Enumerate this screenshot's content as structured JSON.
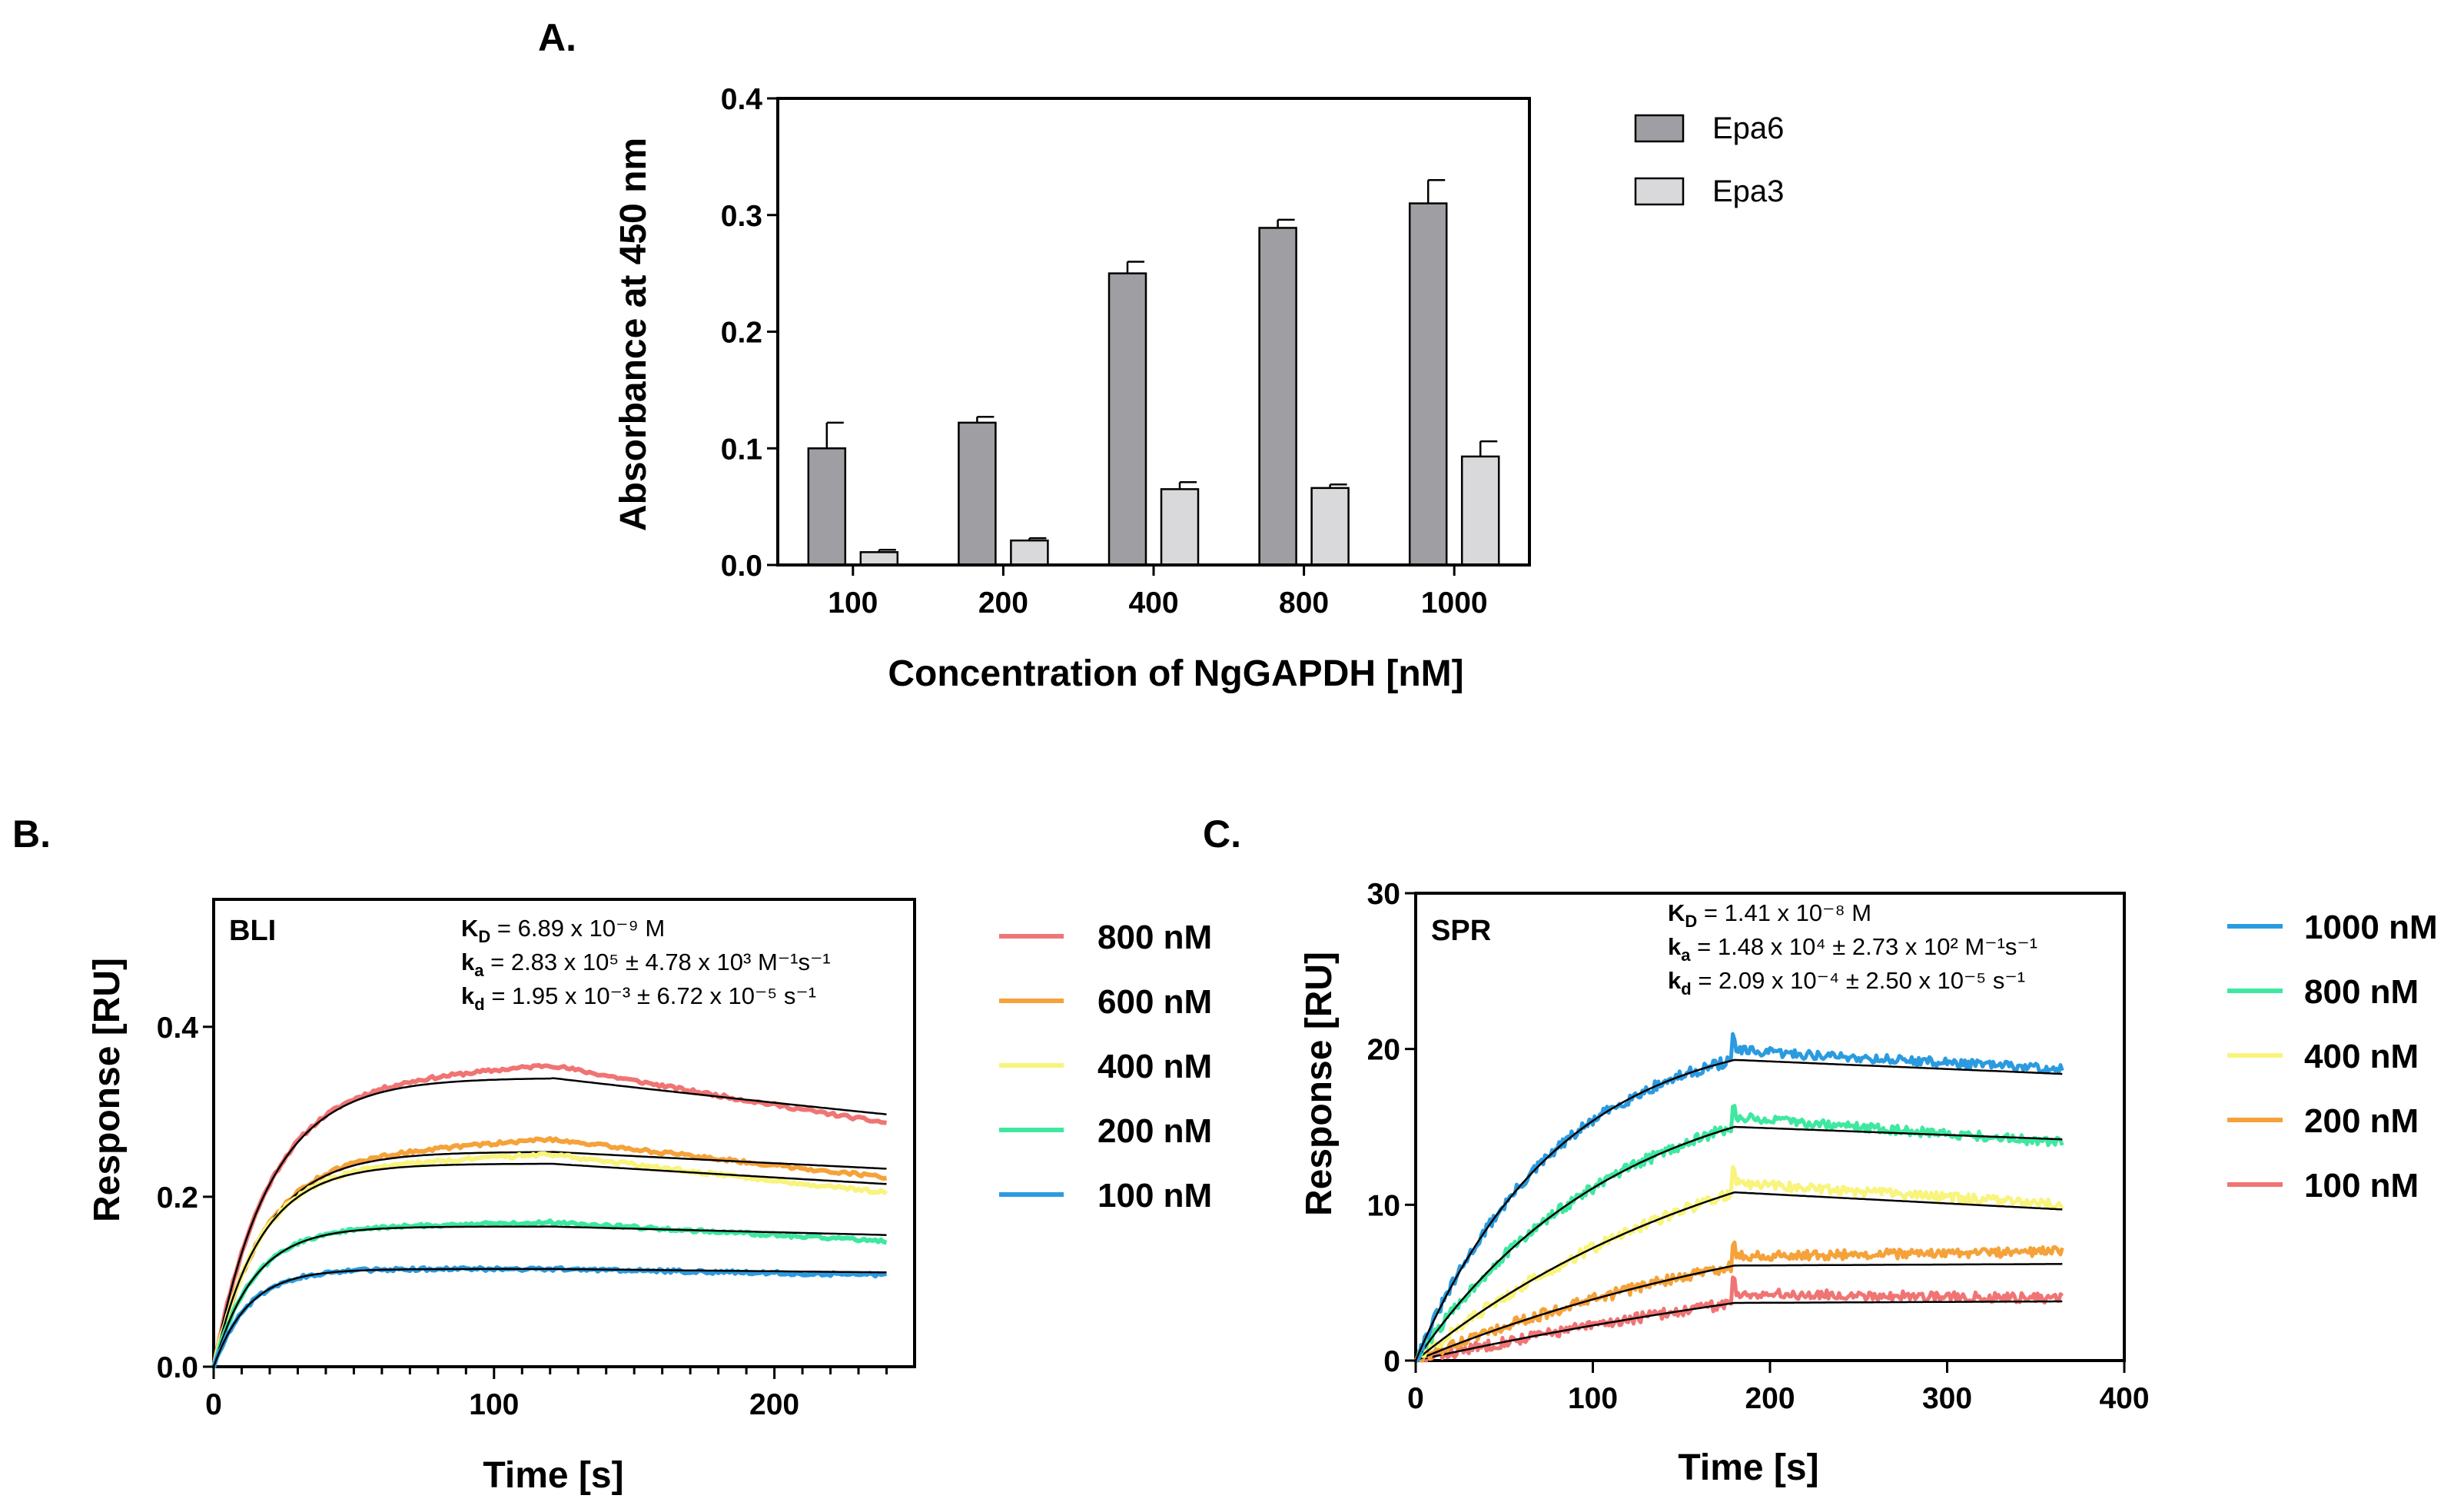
{
  "panels": {
    "A": {
      "letter": "A.",
      "chart_data": {
        "type": "bar",
        "title": "",
        "xlabel": "Concentration of NgGAPDH [nM]",
        "ylabel": "Absorbance at 450 nm",
        "categories": [
          "100",
          "200",
          "400",
          "800",
          "1000"
        ],
        "ylim": [
          0,
          0.4
        ],
        "yticks": [
          0.0,
          0.1,
          0.2,
          0.3,
          0.4
        ],
        "ytick_labels": [
          "0.0",
          "0.1",
          "0.2",
          "0.3",
          "0.4"
        ],
        "legend_position": "right",
        "series": [
          {
            "name": "Epa6",
            "color": "#9e9ea3",
            "values": [
              0.1,
              0.122,
              0.25,
              0.289,
              0.31
            ],
            "errors": [
              0.022,
              0.005,
              0.01,
              0.007,
              0.02
            ]
          },
          {
            "name": "Epa3",
            "color": "#d9d9db",
            "values": [
              0.011,
              0.021,
              0.065,
              0.066,
              0.093
            ],
            "errors": [
              0.002,
              0.002,
              0.006,
              0.003,
              0.013
            ]
          }
        ]
      }
    },
    "B": {
      "letter": "B.",
      "method": "BLI",
      "params": [
        {
          "symbol": "K",
          "sub": "D",
          "text": " = 6.89 x 10⁻⁹ M"
        },
        {
          "symbol": "k",
          "sub": "a",
          "text": " = 2.83 x 10⁵ ± 4.78 x 10³ M⁻¹s⁻¹"
        },
        {
          "symbol": "k",
          "sub": "d",
          "text": " = 1.95 x 10⁻³ ± 6.72 x 10⁻⁵ s⁻¹"
        }
      ],
      "chart_data": {
        "type": "line",
        "xlabel": "Time [s]",
        "ylabel": "Response [RU]",
        "xlim": [
          0,
          250
        ],
        "ylim": [
          0,
          0.55
        ],
        "xticks": [
          0,
          100,
          200
        ],
        "xtick_labels": [
          "0",
          "100",
          "200"
        ],
        "x_minor_step": 10,
        "yticks": [
          0.0,
          0.2,
          0.4
        ],
        "ytick_labels": [
          "0.0",
          "0.2",
          "0.4"
        ],
        "association_end": 120,
        "end_time": 240,
        "legend_position": "right",
        "series": [
          {
            "name": "800 nM",
            "color": "#f07474",
            "fit_plateau": 0.34,
            "fit_rate": 0.05,
            "fit_end": 0.297,
            "data_at_120": 0.355,
            "data_end": 0.287
          },
          {
            "name": "600 nM",
            "color": "#f5a23a",
            "fit_plateau": 0.253,
            "fit_rate": 0.055,
            "fit_end": 0.233,
            "data_at_120": 0.268,
            "data_end": 0.223
          },
          {
            "name": "400 nM",
            "color": "#f8f47c",
            "fit_plateau": 0.239,
            "fit_rate": 0.06,
            "fit_end": 0.215,
            "data_at_120": 0.25,
            "data_end": 0.205
          },
          {
            "name": "200 nM",
            "color": "#3ee8a0",
            "fit_plateau": 0.165,
            "fit_rate": 0.07,
            "fit_end": 0.155,
            "data_at_120": 0.17,
            "data_end": 0.148
          },
          {
            "name": "100 nM",
            "color": "#2b9be0",
            "fit_plateau": 0.115,
            "fit_rate": 0.08,
            "fit_end": 0.111,
            "data_at_120": 0.115,
            "data_end": 0.108
          }
        ]
      }
    },
    "C": {
      "letter": "C.",
      "method": "SPR",
      "params": [
        {
          "symbol": "K",
          "sub": "D",
          "text": " = 1.41 x 10⁻⁸ M"
        },
        {
          "symbol": "k",
          "sub": "a",
          "text": " = 1.48 x 10⁴ ± 2.73 x 10² M⁻¹s⁻¹"
        },
        {
          "symbol": "k",
          "sub": "d",
          "text": " = 2.09 x 10⁻⁴ ± 2.50 x 10⁻⁵ s⁻¹"
        }
      ],
      "chart_data": {
        "type": "line",
        "xlabel": "Time [s]",
        "ylabel": "Response [RU]",
        "xlim": [
          0,
          400
        ],
        "ylim": [
          0,
          30
        ],
        "xticks": [
          0,
          100,
          200,
          300,
          400
        ],
        "xtick_labels": [
          "0",
          "100",
          "200",
          "300",
          "400"
        ],
        "yticks": [
          0,
          10,
          20,
          30
        ],
        "ytick_labels": [
          "0",
          "10",
          "20",
          "30"
        ],
        "association_end": 180,
        "end_time": 365,
        "legend_position": "right",
        "series": [
          {
            "name": "1000 nM",
            "color": "#2b9be0",
            "fit_plateau": 22.5,
            "fit_rate": 0.012,
            "fit_at_180": 19.3,
            "fit_end": 18.4,
            "data_end": 18.7
          },
          {
            "name": "800 nM",
            "color": "#3ee8a0",
            "fit_plateau": 19.0,
            "fit_rate": 0.0088,
            "fit_at_180": 15.0,
            "fit_end": 14.2,
            "data_end": 14.0
          },
          {
            "name": "400 nM",
            "color": "#f8f47c",
            "fit_plateau": 14.5,
            "fit_rate": 0.006,
            "fit_at_180": 10.8,
            "fit_end": 9.7,
            "data_end": 10.0
          },
          {
            "name": "200 nM",
            "color": "#f5a23a",
            "fit_plateau": 12.0,
            "fit_rate": 0.004,
            "fit_at_180": 6.1,
            "fit_end": 6.2,
            "data_end": 7.0
          },
          {
            "name": "100 nM",
            "color": "#f07474",
            "fit_plateau": 10.0,
            "fit_rate": 0.0025,
            "fit_at_180": 3.7,
            "fit_end": 3.8,
            "data_end": 4.0
          }
        ]
      }
    }
  }
}
